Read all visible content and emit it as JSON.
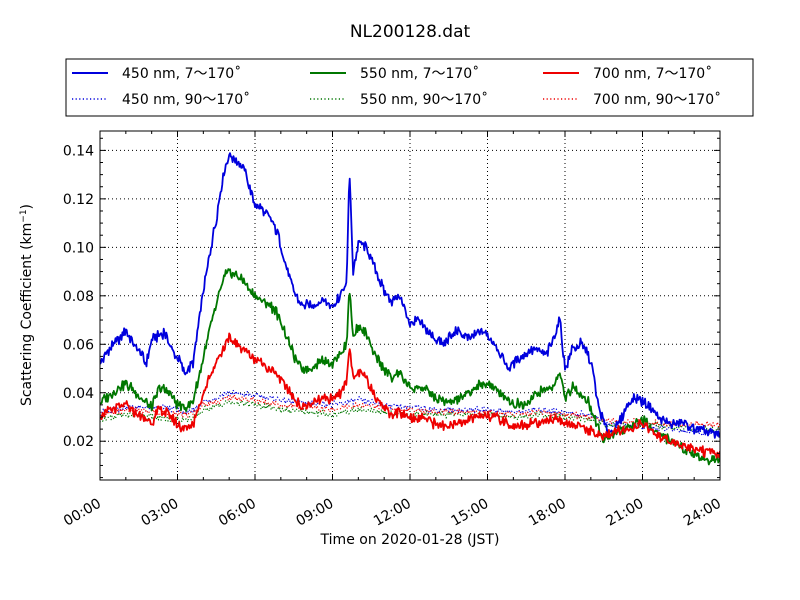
{
  "chart_data": {
    "type": "line",
    "title": "NL200128.dat",
    "xlabel": "Time on 2020-01-28 (JST)",
    "ylabel_main": "Scattering Coefficient (km",
    "ylabel_sup": "−1",
    "ylabel_close": ")",
    "xlim": [
      0,
      24
    ],
    "ylim": [
      0.004,
      0.148
    ],
    "x_ticks": [
      0,
      3,
      6,
      9,
      12,
      15,
      18,
      21,
      24
    ],
    "x_tick_labels": [
      "00:00",
      "03:00",
      "06:00",
      "09:00",
      "12:00",
      "15:00",
      "18:00",
      "21:00",
      "24:00"
    ],
    "y_ticks": [
      0.02,
      0.04,
      0.06,
      0.08,
      0.1,
      0.12,
      0.14
    ],
    "y_tick_labels": [
      "0.02",
      "0.04",
      "0.06",
      "0.08",
      "0.10",
      "0.12",
      "0.14"
    ],
    "grid": true,
    "legend_position": "top",
    "x_unit": "hours since 00:00",
    "series": [
      {
        "name": "450 nm, 7～170˚",
        "color": "#0000dd",
        "style": "solid",
        "x": [
          0,
          0.5,
          0.8,
          1.0,
          1.3,
          1.6,
          1.8,
          2.0,
          2.5,
          2.8,
          3.0,
          3.3,
          3.6,
          4.0,
          4.3,
          4.6,
          4.8,
          5.0,
          5.3,
          5.6,
          5.8,
          6.0,
          6.3,
          6.6,
          6.9,
          7.2,
          7.5,
          7.8,
          8.2,
          8.6,
          9.0,
          9.3,
          9.55,
          9.65,
          9.8,
          10.0,
          10.3,
          10.6,
          11.0,
          11.3,
          11.6,
          12.0,
          12.3,
          12.8,
          13.3,
          13.8,
          14.3,
          14.8,
          15.3,
          15.8,
          16.3,
          16.8,
          17.3,
          17.6,
          17.8,
          18.0,
          18.3,
          18.6,
          18.9,
          19.1,
          19.3,
          19.6,
          19.9,
          20.2,
          20.5,
          20.8,
          21.0,
          21.3,
          21.6,
          21.9,
          22.2,
          22.5,
          22.8,
          23.1,
          23.4,
          23.7,
          24.0
        ],
        "values": [
          0.052,
          0.06,
          0.063,
          0.066,
          0.06,
          0.056,
          0.052,
          0.062,
          0.065,
          0.057,
          0.055,
          0.048,
          0.052,
          0.082,
          0.1,
          0.118,
          0.132,
          0.138,
          0.136,
          0.132,
          0.124,
          0.118,
          0.115,
          0.112,
          0.105,
          0.092,
          0.082,
          0.076,
          0.076,
          0.078,
          0.076,
          0.08,
          0.085,
          0.132,
          0.09,
          0.102,
          0.1,
          0.092,
          0.082,
          0.078,
          0.08,
          0.068,
          0.07,
          0.064,
          0.06,
          0.066,
          0.062,
          0.066,
          0.06,
          0.05,
          0.055,
          0.058,
          0.056,
          0.064,
          0.07,
          0.05,
          0.058,
          0.06,
          0.056,
          0.048,
          0.034,
          0.025,
          0.024,
          0.03,
          0.036,
          0.038,
          0.036,
          0.034,
          0.03,
          0.028,
          0.027,
          0.028,
          0.026,
          0.025,
          0.024,
          0.023,
          0.023
        ]
      },
      {
        "name": "450 nm, 90～170˚",
        "color": "#0000dd",
        "style": "dotted",
        "x": [
          0,
          1,
          2,
          3,
          3.5,
          4,
          5,
          6,
          7,
          8,
          9,
          10,
          11,
          12,
          13,
          14,
          15,
          16,
          17,
          18,
          19,
          19.5,
          20,
          21,
          22,
          23,
          24
        ],
        "values": [
          0.032,
          0.034,
          0.034,
          0.033,
          0.032,
          0.036,
          0.04,
          0.039,
          0.037,
          0.036,
          0.035,
          0.037,
          0.035,
          0.034,
          0.033,
          0.033,
          0.033,
          0.032,
          0.033,
          0.032,
          0.031,
          0.028,
          0.026,
          0.026,
          0.025,
          0.024,
          0.023
        ]
      },
      {
        "name": "550 nm, 7～170˚",
        "color": "#007700",
        "style": "solid",
        "x": [
          0,
          0.5,
          1.0,
          1.3,
          1.6,
          2.0,
          2.3,
          2.7,
          3.0,
          3.3,
          3.6,
          4.0,
          4.3,
          4.6,
          4.8,
          5.0,
          5.3,
          5.6,
          5.8,
          6.0,
          6.3,
          6.6,
          6.9,
          7.2,
          7.5,
          7.8,
          8.2,
          8.6,
          9.0,
          9.3,
          9.55,
          9.65,
          9.8,
          10.0,
          10.3,
          10.6,
          11.0,
          11.3,
          11.6,
          12.0,
          12.5,
          13.0,
          13.5,
          14.0,
          14.5,
          15.0,
          15.5,
          16.0,
          16.5,
          17.0,
          17.5,
          17.8,
          18.0,
          18.3,
          18.6,
          18.9,
          19.2,
          19.5,
          20.0,
          20.5,
          21.0,
          21.5,
          22.0,
          22.5,
          23.0,
          23.5,
          24.0
        ],
        "values": [
          0.036,
          0.04,
          0.044,
          0.041,
          0.038,
          0.034,
          0.042,
          0.04,
          0.035,
          0.034,
          0.036,
          0.055,
          0.068,
          0.08,
          0.088,
          0.09,
          0.088,
          0.086,
          0.082,
          0.08,
          0.078,
          0.076,
          0.072,
          0.064,
          0.055,
          0.05,
          0.05,
          0.054,
          0.052,
          0.056,
          0.06,
          0.084,
          0.062,
          0.068,
          0.064,
          0.056,
          0.05,
          0.046,
          0.048,
          0.042,
          0.042,
          0.038,
          0.036,
          0.038,
          0.042,
          0.044,
          0.04,
          0.035,
          0.036,
          0.04,
          0.042,
          0.048,
          0.038,
          0.042,
          0.04,
          0.036,
          0.028,
          0.02,
          0.024,
          0.026,
          0.029,
          0.024,
          0.021,
          0.018,
          0.015,
          0.012,
          0.013
        ]
      },
      {
        "name": "550 nm, 90～170˚",
        "color": "#007700",
        "style": "dotted",
        "x": [
          0,
          1,
          2,
          3,
          3.5,
          4,
          5,
          6,
          7,
          8,
          9,
          10,
          11,
          12,
          13,
          14,
          15,
          16,
          17,
          18,
          19,
          19.5,
          20,
          21,
          22,
          23,
          24
        ],
        "values": [
          0.029,
          0.031,
          0.03,
          0.029,
          0.029,
          0.033,
          0.036,
          0.035,
          0.033,
          0.032,
          0.031,
          0.033,
          0.032,
          0.031,
          0.031,
          0.031,
          0.031,
          0.03,
          0.031,
          0.03,
          0.029,
          0.027,
          0.026,
          0.027,
          0.026,
          0.025,
          0.025
        ]
      },
      {
        "name": "700 nm, 7～170˚",
        "color": "#ee0000",
        "style": "solid",
        "x": [
          0,
          0.5,
          1.0,
          1.3,
          1.6,
          2.0,
          2.3,
          2.7,
          3.0,
          3.3,
          3.6,
          4.0,
          4.3,
          4.6,
          5.0,
          5.3,
          5.6,
          5.8,
          6.0,
          6.3,
          6.6,
          6.9,
          7.2,
          7.5,
          7.8,
          8.2,
          8.6,
          9.0,
          9.3,
          9.55,
          9.65,
          9.8,
          10.0,
          10.3,
          10.6,
          11.0,
          11.3,
          11.6,
          12.0,
          12.5,
          13.0,
          13.5,
          14.0,
          14.5,
          15.0,
          15.5,
          16.0,
          16.5,
          17.0,
          17.5,
          18.0,
          18.5,
          19.0,
          19.5,
          20.0,
          20.5,
          21.0,
          21.5,
          22.0,
          22.5,
          23.0,
          23.5,
          24.0
        ],
        "values": [
          0.031,
          0.033,
          0.035,
          0.032,
          0.03,
          0.028,
          0.033,
          0.031,
          0.027,
          0.025,
          0.027,
          0.04,
          0.048,
          0.055,
          0.062,
          0.06,
          0.058,
          0.056,
          0.054,
          0.052,
          0.05,
          0.047,
          0.042,
          0.038,
          0.034,
          0.035,
          0.038,
          0.037,
          0.04,
          0.045,
          0.06,
          0.046,
          0.048,
          0.046,
          0.04,
          0.034,
          0.031,
          0.032,
          0.03,
          0.03,
          0.027,
          0.026,
          0.028,
          0.03,
          0.031,
          0.029,
          0.026,
          0.027,
          0.028,
          0.029,
          0.028,
          0.026,
          0.024,
          0.022,
          0.024,
          0.025,
          0.027,
          0.023,
          0.02,
          0.018,
          0.017,
          0.015,
          0.015
        ]
      },
      {
        "name": "700 nm, 90～170˚",
        "color": "#ee0000",
        "style": "dotted",
        "x": [
          0,
          1,
          2,
          3,
          3.5,
          4,
          5,
          6,
          7,
          8,
          9,
          10,
          11,
          12,
          13,
          14,
          15,
          16,
          17,
          18,
          19,
          19.5,
          20,
          21,
          22,
          23,
          24
        ],
        "values": [
          0.031,
          0.033,
          0.032,
          0.031,
          0.031,
          0.035,
          0.038,
          0.037,
          0.035,
          0.034,
          0.033,
          0.035,
          0.034,
          0.033,
          0.032,
          0.032,
          0.032,
          0.031,
          0.032,
          0.031,
          0.03,
          0.029,
          0.028,
          0.028,
          0.027,
          0.027,
          0.027
        ]
      }
    ]
  }
}
